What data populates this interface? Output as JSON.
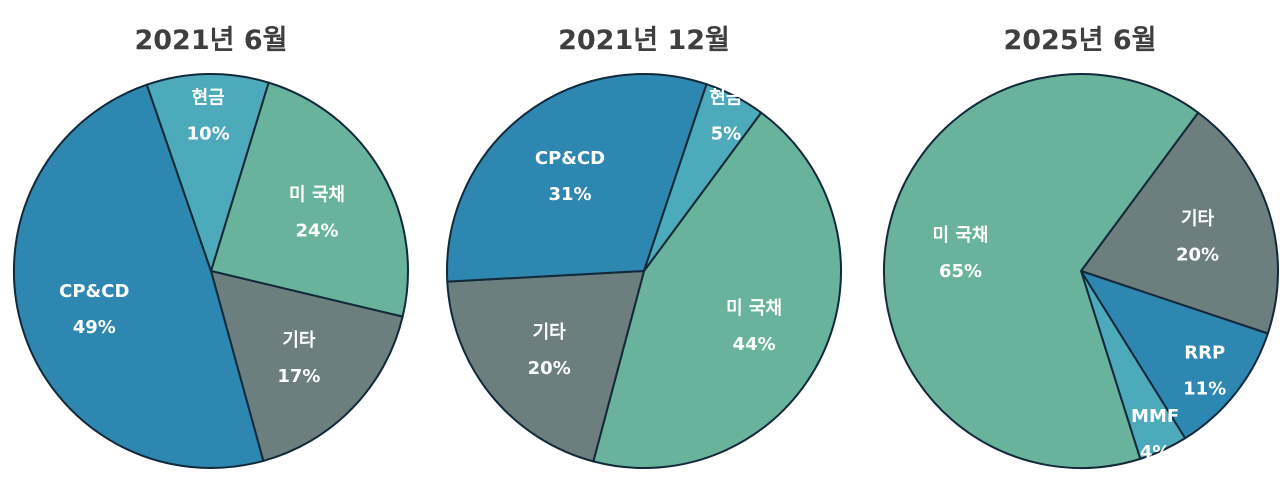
{
  "chart_data": [
    {
      "type": "pie",
      "title": "2021년 6월",
      "slices": [
        {
          "label": "미 국채",
          "value": 24,
          "value_label": "24%",
          "color": "#69b39c"
        },
        {
          "label": "기타",
          "value": 17,
          "value_label": "17%",
          "color": "#6c7e7e"
        },
        {
          "label": "CP&CD",
          "value": 49,
          "value_label": "49%",
          "color": "#2e87b1"
        },
        {
          "label": "현금",
          "value": 10,
          "value_label": "10%",
          "color": "#4daabb"
        }
      ]
    },
    {
      "type": "pie",
      "title": "2021년 12월",
      "slices": [
        {
          "label": "미 국채",
          "value": 44,
          "value_label": "44%",
          "color": "#69b39c"
        },
        {
          "label": "기타",
          "value": 20,
          "value_label": "20%",
          "color": "#6c7e7e"
        },
        {
          "label": "CP&CD",
          "value": 31,
          "value_label": "31%",
          "color": "#2e87b1"
        },
        {
          "label": "현금",
          "value": 5,
          "value_label": "5%",
          "color": "#4daabb"
        }
      ]
    },
    {
      "type": "pie",
      "title": "2025년 6월",
      "slices": [
        {
          "label": "기타",
          "value": 20,
          "value_label": "20%",
          "color": "#6c7e7e"
        },
        {
          "label": "RRP",
          "value": 11,
          "value_label": "11%",
          "color": "#2e87b1"
        },
        {
          "label": "MMF",
          "value": 4,
          "value_label": "4%",
          "color": "#4daabb"
        },
        {
          "label": "미 국채",
          "value": 65,
          "value_label": "65%",
          "color": "#69b39c"
        }
      ]
    }
  ]
}
